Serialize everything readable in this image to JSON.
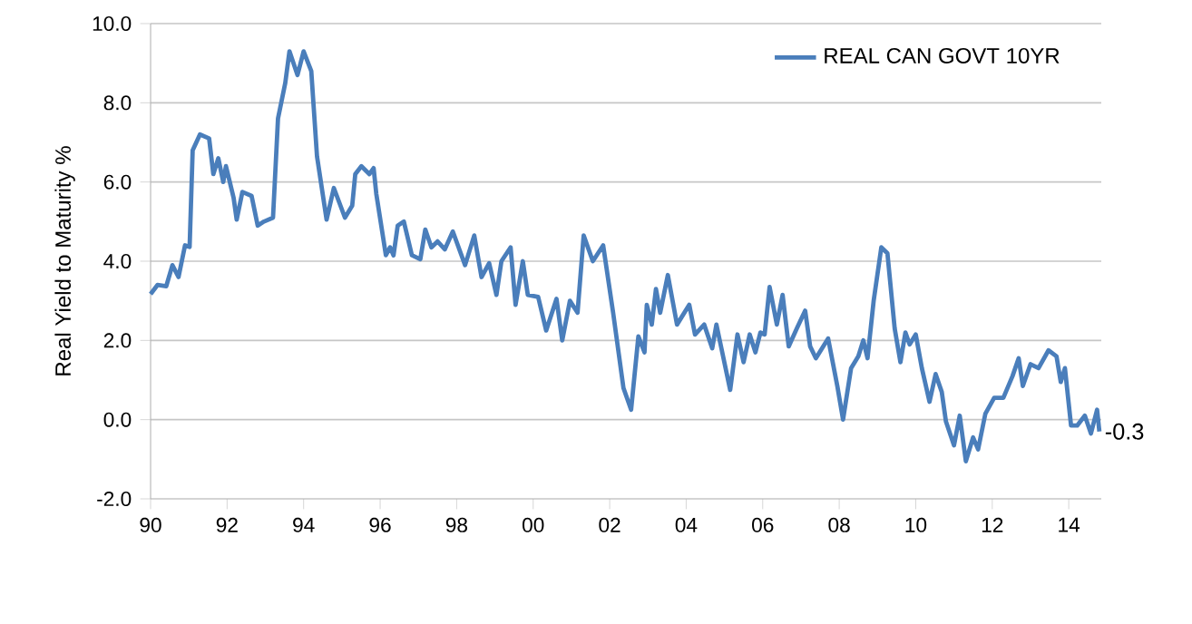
{
  "chart_data": {
    "type": "line",
    "ylabel": "Real Yield to Maturity %",
    "xlim": [
      1990,
      2014.85
    ],
    "ylim": [
      -2,
      10
    ],
    "xticks": [
      {
        "value": 1990,
        "label": "90"
      },
      {
        "value": 1992,
        "label": "92"
      },
      {
        "value": 1994,
        "label": "94"
      },
      {
        "value": 1996,
        "label": "96"
      },
      {
        "value": 1998,
        "label": "98"
      },
      {
        "value": 2000,
        "label": "00"
      },
      {
        "value": 2002,
        "label": "02"
      },
      {
        "value": 2004,
        "label": "04"
      },
      {
        "value": 2006,
        "label": "06"
      },
      {
        "value": 2008,
        "label": "08"
      },
      {
        "value": 2010,
        "label": "10"
      },
      {
        "value": 2012,
        "label": "12"
      },
      {
        "value": 2014,
        "label": "14"
      }
    ],
    "yticks": [
      {
        "value": -2,
        "label": "-2.0"
      },
      {
        "value": 0,
        "label": "0.0"
      },
      {
        "value": 2,
        "label": "2.0"
      },
      {
        "value": 4,
        "label": "4.0"
      },
      {
        "value": 6,
        "label": "6.0"
      },
      {
        "value": 8,
        "label": "8.0"
      },
      {
        "value": 10,
        "label": "10.0"
      }
    ],
    "grid": "y",
    "legend": "top right",
    "line_style": "solid",
    "marker": "none",
    "annotations": [
      {
        "text": "-0.3",
        "x": 2014.8,
        "y": -0.3
      }
    ],
    "series": [
      {
        "name": "REAL CAN GOVT 10YR",
        "color": "#4a7ebb",
        "x": [
          1990.0,
          1990.18,
          1990.41,
          1990.57,
          1990.73,
          1990.9,
          1991.02,
          1991.1,
          1991.29,
          1991.53,
          1991.64,
          1991.77,
          1991.9,
          1991.97,
          1992.17,
          1992.25,
          1992.4,
          1992.64,
          1992.8,
          1992.96,
          1993.2,
          1993.33,
          1993.52,
          1993.63,
          1993.84,
          1994.0,
          1994.2,
          1994.35,
          1994.6,
          1994.79,
          1995.08,
          1995.27,
          1995.35,
          1995.51,
          1995.72,
          1995.83,
          1995.9,
          1996.15,
          1996.26,
          1996.35,
          1996.46,
          1996.62,
          1996.83,
          1997.05,
          1997.18,
          1997.34,
          1997.5,
          1997.69,
          1997.9,
          1998.22,
          1998.46,
          1998.65,
          1998.85,
          1999.04,
          1999.17,
          1999.41,
          1999.54,
          1999.73,
          1999.86,
          2000.13,
          2000.34,
          2000.61,
          2000.76,
          2000.96,
          2001.16,
          2001.32,
          2001.56,
          2001.83,
          2002.09,
          2002.36,
          2002.56,
          2002.75,
          2002.91,
          2002.97,
          2003.1,
          2003.21,
          2003.32,
          2003.52,
          2003.76,
          2004.08,
          2004.23,
          2004.47,
          2004.68,
          2004.79,
          2005.15,
          2005.34,
          2005.5,
          2005.66,
          2005.81,
          2005.94,
          2006.05,
          2006.18,
          2006.37,
          2006.52,
          2006.68,
          2006.89,
          2007.11,
          2007.24,
          2007.39,
          2007.71,
          2007.95,
          2008.1,
          2008.31,
          2008.5,
          2008.63,
          2008.74,
          2008.9,
          2009.1,
          2009.26,
          2009.45,
          2009.6,
          2009.73,
          2009.84,
          2010.0,
          2010.16,
          2010.36,
          2010.52,
          2010.68,
          2010.79,
          2011.0,
          2011.15,
          2011.31,
          2011.5,
          2011.63,
          2011.82,
          2012.05,
          2012.29,
          2012.53,
          2012.69,
          2012.8,
          2013.0,
          2013.21,
          2013.47,
          2013.68,
          2013.79,
          2013.9,
          2014.06,
          2014.22,
          2014.42,
          2014.58,
          2014.74,
          2014.8
        ],
        "values": [
          3.17,
          3.4,
          3.37,
          3.9,
          3.6,
          4.4,
          4.36,
          6.8,
          7.2,
          7.1,
          6.2,
          6.6,
          6.0,
          6.4,
          5.6,
          5.05,
          5.75,
          5.65,
          4.9,
          5.0,
          5.1,
          7.6,
          8.5,
          9.3,
          8.7,
          9.3,
          8.8,
          6.65,
          5.05,
          5.85,
          5.1,
          5.4,
          6.2,
          6.4,
          6.2,
          6.35,
          5.7,
          4.15,
          4.35,
          4.15,
          4.9,
          5.0,
          4.15,
          4.05,
          4.8,
          4.35,
          4.5,
          4.3,
          4.75,
          3.9,
          4.65,
          3.6,
          3.95,
          3.15,
          4.0,
          4.35,
          2.9,
          4.0,
          3.15,
          3.1,
          2.25,
          3.05,
          2.0,
          3.0,
          2.7,
          4.65,
          4.0,
          4.4,
          2.7,
          0.8,
          0.25,
          2.1,
          1.7,
          2.9,
          2.4,
          3.3,
          2.7,
          3.65,
          2.4,
          2.9,
          2.15,
          2.4,
          1.8,
          2.4,
          0.75,
          2.15,
          1.45,
          2.15,
          1.7,
          2.2,
          2.15,
          3.35,
          2.4,
          3.15,
          1.85,
          2.3,
          2.75,
          1.85,
          1.55,
          2.05,
          0.85,
          0.0,
          1.3,
          1.6,
          2.0,
          1.55,
          3.0,
          4.35,
          4.2,
          2.3,
          1.45,
          2.2,
          1.9,
          2.15,
          1.3,
          0.45,
          1.15,
          0.7,
          -0.05,
          -0.65,
          0.1,
          -1.05,
          -0.45,
          -0.75,
          0.15,
          0.55,
          0.55,
          1.1,
          1.55,
          0.85,
          1.4,
          1.3,
          1.75,
          1.6,
          0.95,
          1.3,
          -0.15,
          -0.15,
          0.1,
          -0.35,
          0.25,
          -0.3
        ]
      }
    ]
  }
}
